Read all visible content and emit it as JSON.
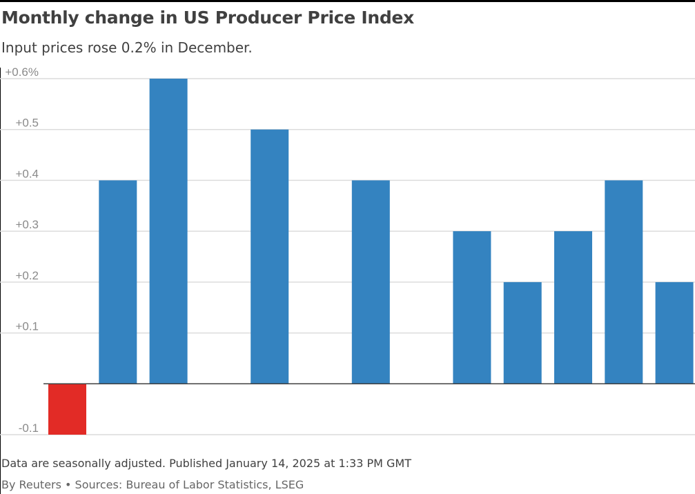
{
  "title": "Monthly change in US Producer Price Index",
  "subtitle": "Input prices rose 0.2% in December.",
  "footer": {
    "note": "Data are seasonally adjusted. Published January 14, 2025 at 1:33 PM GMT",
    "source": "By Reuters • Sources: Bureau of Labor Statistics, LSEG"
  },
  "chart_data": {
    "type": "bar",
    "title": "Monthly change in US Producer Price Index",
    "subtitle": "Input prices rose 0.2% in December.",
    "categories": [
      "",
      "",
      "",
      "",
      "",
      "",
      "",
      "",
      "",
      "",
      "",
      "",
      ""
    ],
    "values": [
      -0.1,
      0.4,
      0.6,
      0.0,
      0.5,
      0.0,
      0.4,
      0.0,
      0.3,
      0.2,
      0.3,
      0.4,
      0.2
    ],
    "ylim": [
      -0.1,
      0.6
    ],
    "yticks": [
      {
        "value": 0.6,
        "label": "+0.6%"
      },
      {
        "value": 0.5,
        "label": "+0.5"
      },
      {
        "value": 0.4,
        "label": "+0.4"
      },
      {
        "value": 0.3,
        "label": "+0.3"
      },
      {
        "value": 0.2,
        "label": "+0.2"
      },
      {
        "value": 0.1,
        "label": "+0.1"
      },
      {
        "value": -0.1,
        "label": "-0.1"
      }
    ],
    "grid": true,
    "colors": {
      "positive": "#3483c0",
      "negative": "#e22b26",
      "grid": "#dcdcdc",
      "axis": "#404040"
    }
  }
}
